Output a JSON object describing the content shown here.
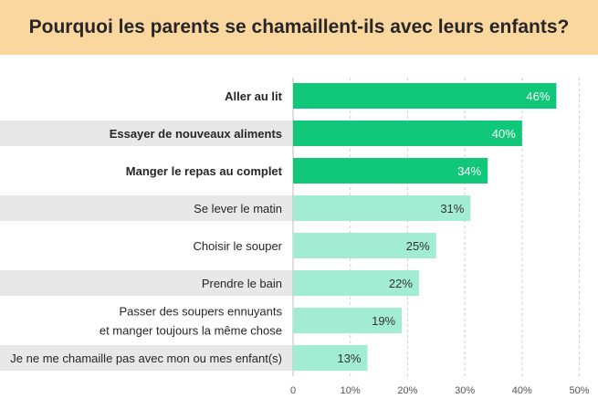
{
  "chart_data": {
    "type": "bar",
    "orientation": "horizontal",
    "title": "Pourquoi les parents se chamaillent-ils avec leurs enfants?",
    "categories": [
      [
        "Aller au lit"
      ],
      [
        "Essayer de nouveaux aliments"
      ],
      [
        "Manger le repas au complet"
      ],
      [
        "Se lever le matin"
      ],
      [
        "Choisir le souper"
      ],
      [
        "Prendre le bain"
      ],
      [
        "Passer des soupers ennuyants",
        "et manger toujours la même chose"
      ],
      [
        "Je ne me chamaille pas avec mon ou mes enfant(s)"
      ]
    ],
    "values": [
      46,
      40,
      34,
      31,
      25,
      22,
      19,
      13
    ],
    "value_labels": [
      "46%",
      "40%",
      "34%",
      "31%",
      "25%",
      "22%",
      "19%",
      "13%"
    ],
    "highlighted": [
      true,
      true,
      true,
      false,
      false,
      false,
      false,
      false
    ],
    "xlim": [
      0,
      50
    ],
    "xticks": [
      0,
      10,
      20,
      30,
      40,
      50
    ],
    "xtick_labels": [
      "0",
      "10%",
      "20%",
      "30%",
      "40%",
      "50%"
    ],
    "xlabel": "",
    "ylabel": "",
    "grid": "vertical dashed",
    "legend": "none",
    "colors": {
      "highlight_bar": "#11c77a",
      "normal_bar": "#a3ecd4",
      "title_band": "#fbd7a0",
      "row_stripe": "#e8e8e8",
      "text": "#262626",
      "highlight_value_text": "#ffffff",
      "normal_value_text": "#333333",
      "grid": "#cccccc"
    }
  }
}
